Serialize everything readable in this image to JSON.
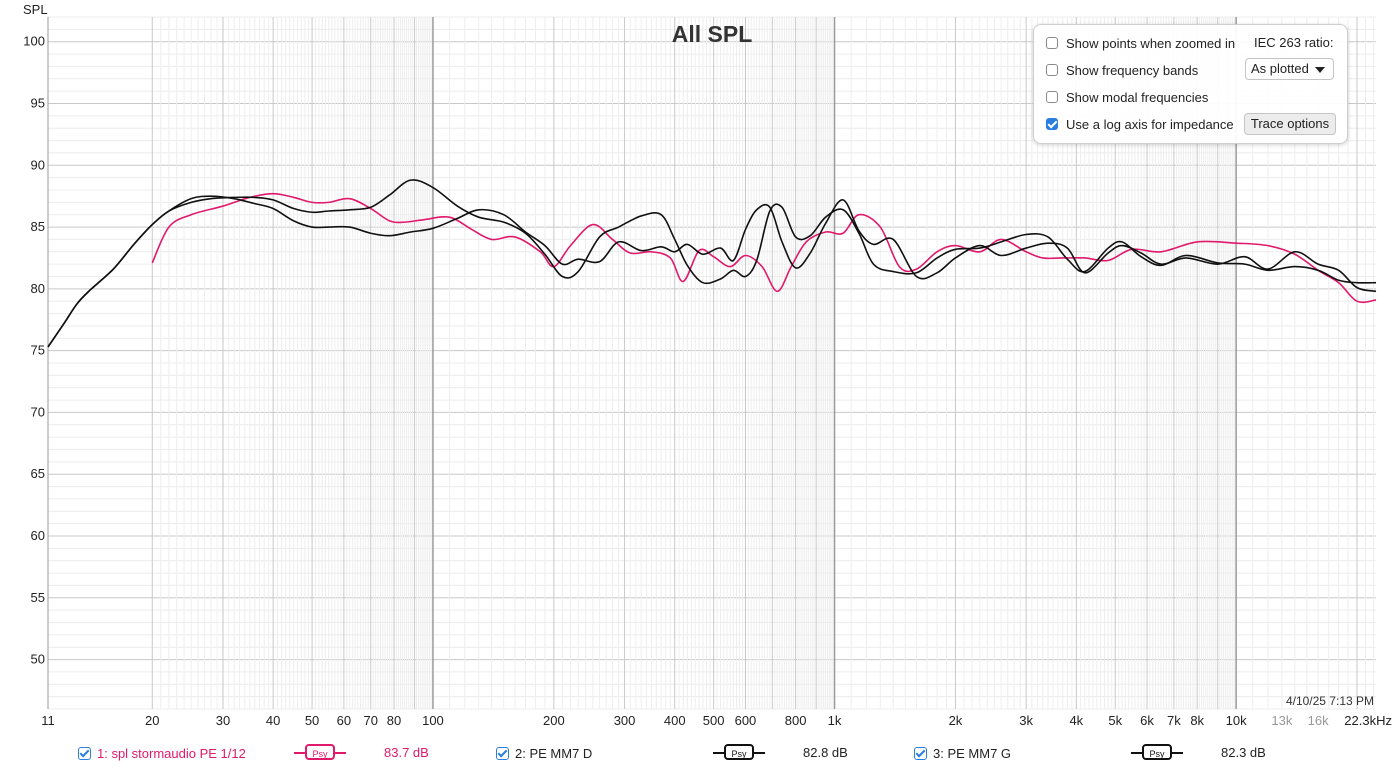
{
  "chart_data": {
    "type": "line",
    "title": "All SPL",
    "ylabel": "SPL",
    "xlabel": "",
    "x_scale": "log",
    "xlim": [
      11,
      22300
    ],
    "ylim": [
      46,
      102
    ],
    "y_ticks": [
      50,
      55,
      60,
      65,
      70,
      75,
      80,
      85,
      90,
      95,
      100
    ],
    "x_tick_labels": [
      {
        "value": 11,
        "label": "11"
      },
      {
        "value": 20,
        "label": "20"
      },
      {
        "value": 30,
        "label": "30"
      },
      {
        "value": 40,
        "label": "40"
      },
      {
        "value": 50,
        "label": "50"
      },
      {
        "value": 60,
        "label": "60"
      },
      {
        "value": 70,
        "label": "70"
      },
      {
        "value": 80,
        "label": "80"
      },
      {
        "value": 100,
        "label": "100"
      },
      {
        "value": 200,
        "label": "200"
      },
      {
        "value": 300,
        "label": "300"
      },
      {
        "value": 400,
        "label": "400"
      },
      {
        "value": 500,
        "label": "500"
      },
      {
        "value": 600,
        "label": "600"
      },
      {
        "value": 800,
        "label": "800"
      },
      {
        "value": 1000,
        "label": "1k"
      },
      {
        "value": 2000,
        "label": "2k"
      },
      {
        "value": 3000,
        "label": "3k"
      },
      {
        "value": 4000,
        "label": "4k"
      },
      {
        "value": 5000,
        "label": "5k"
      },
      {
        "value": 6000,
        "label": "6k"
      },
      {
        "value": 7000,
        "label": "7k"
      },
      {
        "value": 8000,
        "label": "8k"
      },
      {
        "value": 10000,
        "label": "10k"
      },
      {
        "value": 13000,
        "label": "13k",
        "dim": true
      },
      {
        "value": 16000,
        "label": "16k",
        "dim": true
      },
      {
        "value": 22300,
        "label": "22.3kHz"
      }
    ],
    "grid": true,
    "series": [
      {
        "name": "1: spl stormaudio PE 1/12",
        "color": "#e0196c",
        "x": [
          20,
          22,
          25,
          30,
          35,
          40,
          45,
          50,
          55,
          62,
          70,
          78,
          85,
          95,
          110,
          125,
          140,
          160,
          185,
          200,
          220,
          250,
          280,
          310,
          350,
          390,
          420,
          460,
          500,
          550,
          600,
          660,
          720,
          780,
          850,
          950,
          1050,
          1150,
          1300,
          1450,
          1600,
          1800,
          2000,
          2300,
          2600,
          3000,
          3300,
          3700,
          4200,
          4800,
          5500,
          6500,
          8000,
          10000,
          12000,
          14000,
          16000,
          18000,
          20000,
          22300
        ],
        "values": [
          82.1,
          85.0,
          86.0,
          86.7,
          87.4,
          87.7,
          87.4,
          87.0,
          87.0,
          87.3,
          86.5,
          85.5,
          85.4,
          85.6,
          85.8,
          84.8,
          84.0,
          84.2,
          83.0,
          81.8,
          83.5,
          85.2,
          84.0,
          82.9,
          83.0,
          82.5,
          80.6,
          83.1,
          82.6,
          81.8,
          82.7,
          81.8,
          79.8,
          81.8,
          83.8,
          84.6,
          84.5,
          86.0,
          85.0,
          81.8,
          81.6,
          83.0,
          83.5,
          83.0,
          84.0,
          83.0,
          82.5,
          82.5,
          82.5,
          82.3,
          83.2,
          83.0,
          83.8,
          83.7,
          83.5,
          82.8,
          81.5,
          80.5,
          79.0,
          79.1
        ]
      },
      {
        "name": "2: PE MM7 D",
        "color": "#111111",
        "x": [
          11,
          12,
          13,
          14,
          16,
          18,
          20,
          22,
          25,
          28,
          32,
          36,
          40,
          45,
          50,
          55,
          62,
          70,
          78,
          88,
          100,
          115,
          130,
          150,
          170,
          190,
          210,
          230,
          260,
          290,
          330,
          370,
          400,
          430,
          470,
          520,
          560,
          600,
          640,
          690,
          740,
          800,
          870,
          950,
          1050,
          1150,
          1250,
          1400,
          1600,
          1800,
          2000,
          2300,
          2600,
          3000,
          3400,
          3800,
          4200,
          4800,
          5200,
          5800,
          6500,
          7500,
          9000,
          10500,
          12000,
          14000,
          16000,
          18000,
          20000,
          22300
        ],
        "values": [
          75.3,
          77.1,
          78.8,
          79.9,
          81.6,
          83.6,
          85.2,
          86.3,
          87.0,
          87.3,
          87.4,
          87.4,
          87.2,
          86.5,
          86.2,
          86.3,
          86.4,
          86.6,
          87.6,
          88.8,
          88.2,
          86.7,
          85.8,
          85.4,
          84.5,
          82.8,
          81.0,
          81.4,
          84.2,
          85.0,
          85.9,
          86.0,
          84.0,
          81.9,
          80.5,
          80.8,
          81.5,
          81.0,
          82.3,
          86.3,
          86.6,
          84.2,
          84.3,
          85.8,
          86.4,
          84.5,
          82.0,
          81.4,
          81.3,
          82.5,
          83.2,
          83.3,
          83.8,
          84.4,
          84.2,
          82.4,
          81.4,
          83.3,
          83.8,
          82.6,
          81.9,
          82.7,
          82.1,
          82.0,
          81.5,
          81.8,
          81.5,
          80.7,
          80.5,
          80.5
        ]
      },
      {
        "name": "3: PE MM7 G",
        "color": "#111111",
        "x": [
          11,
          12,
          13,
          14,
          16,
          18,
          20,
          22,
          25,
          28,
          32,
          36,
          40,
          45,
          50,
          55,
          62,
          70,
          78,
          88,
          100,
          115,
          130,
          150,
          170,
          190,
          210,
          230,
          260,
          290,
          330,
          370,
          400,
          430,
          470,
          520,
          560,
          600,
          640,
          690,
          740,
          800,
          870,
          950,
          1050,
          1150,
          1250,
          1400,
          1600,
          1800,
          2000,
          2300,
          2600,
          3000,
          3400,
          3800,
          4200,
          4800,
          5200,
          5800,
          6500,
          7500,
          9000,
          10500,
          12000,
          14000,
          16000,
          18000,
          20000,
          22300
        ],
        "values": [
          75.3,
          77.1,
          78.8,
          79.9,
          81.6,
          83.6,
          85.2,
          86.3,
          87.3,
          87.5,
          87.3,
          86.9,
          86.5,
          85.5,
          85.0,
          85.0,
          85.0,
          84.5,
          84.3,
          84.6,
          84.9,
          85.7,
          86.4,
          86.0,
          84.6,
          83.5,
          82.0,
          82.4,
          82.2,
          83.8,
          83.1,
          83.4,
          83.0,
          83.6,
          82.8,
          83.3,
          82.3,
          84.8,
          86.4,
          86.6,
          83.8,
          81.7,
          82.9,
          85.3,
          87.2,
          84.7,
          83.6,
          84.0,
          81.0,
          81.3,
          82.5,
          83.5,
          82.7,
          83.3,
          83.7,
          83.3,
          81.3,
          82.9,
          83.5,
          82.9,
          82.0,
          82.5,
          82.0,
          82.6,
          81.6,
          83.0,
          82.0,
          81.5,
          80.1,
          79.8
        ]
      }
    ]
  },
  "date_stamp": "4/10/25 7:13 PM",
  "options": {
    "show_points_label": "Show points when zoomed in",
    "show_points_checked": false,
    "show_bands_label": "Show frequency bands",
    "show_bands_checked": false,
    "show_modal_label": "Show modal frequencies",
    "show_modal_checked": false,
    "log_impedance_label": "Use a log axis for impedance",
    "log_impedance_checked": true,
    "iec_label": "IEC 263 ratio:",
    "iec_value": "As plotted",
    "trace_options_label": "Trace options"
  },
  "legend": [
    {
      "label": "1: spl stormaudio PE 1/12",
      "psy": "Psy",
      "value": "83.7 dB",
      "color": "#e0196c",
      "checked": true
    },
    {
      "label": "2: PE MM7 D",
      "psy": "Psy",
      "value": "82.8 dB",
      "color": "#111111",
      "checked": true
    },
    {
      "label": "3: PE MM7 G",
      "psy": "Psy",
      "value": "82.3 dB",
      "color": "#111111",
      "checked": true
    }
  ]
}
